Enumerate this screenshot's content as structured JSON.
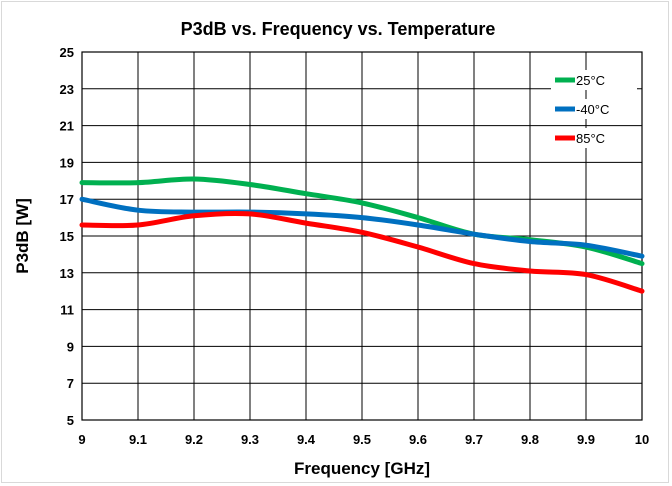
{
  "chart_data": {
    "type": "line",
    "title": "P3dB vs. Frequency vs. Temperature",
    "xlabel": "Frequency [GHz]",
    "ylabel": "P3dB [W]",
    "xlim": [
      9,
      10
    ],
    "ylim": [
      5,
      25
    ],
    "x_ticks": [
      "9",
      "9.1",
      "9.2",
      "9.3",
      "9.4",
      "9.5",
      "9.6",
      "9.7",
      "9.8",
      "9.9",
      "10"
    ],
    "y_ticks": [
      "5",
      "7",
      "9",
      "11",
      "13",
      "15",
      "17",
      "19",
      "21",
      "23",
      "25"
    ],
    "grid": true,
    "legend_position": "top-right",
    "x": [
      9.0,
      9.1,
      9.2,
      9.3,
      9.4,
      9.5,
      9.6,
      9.7,
      9.8,
      9.9,
      10.0
    ],
    "series": [
      {
        "name": "25°C",
        "color": "#00b050",
        "values": [
          17.9,
          17.9,
          18.1,
          17.8,
          17.3,
          16.8,
          16.0,
          15.1,
          14.8,
          14.4,
          13.5
        ]
      },
      {
        "name": "-40°C",
        "color": "#0070c0",
        "values": [
          17.0,
          16.4,
          16.3,
          16.3,
          16.2,
          16.0,
          15.6,
          15.1,
          14.7,
          14.5,
          13.9
        ]
      },
      {
        "name": "85°C",
        "color": "#ff0000",
        "values": [
          15.6,
          15.6,
          16.1,
          16.2,
          15.7,
          15.2,
          14.4,
          13.5,
          13.1,
          12.9,
          12.0
        ]
      }
    ]
  }
}
